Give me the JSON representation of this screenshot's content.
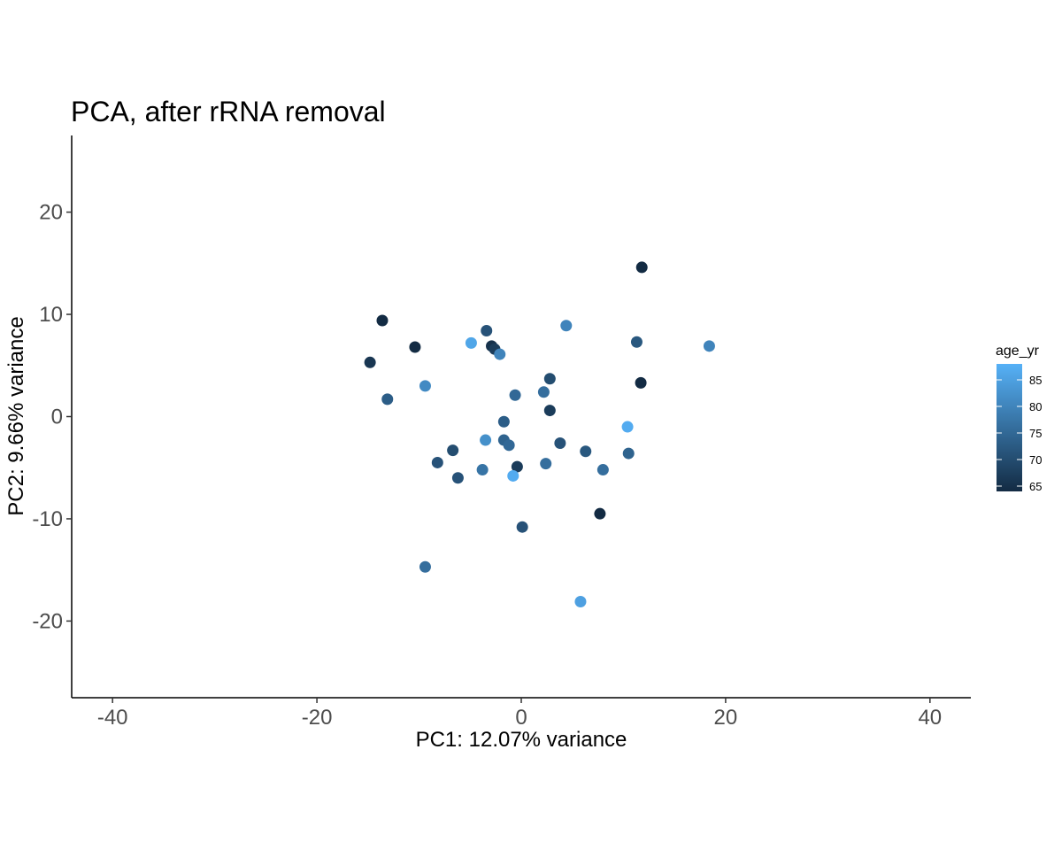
{
  "chart_data": {
    "type": "scatter",
    "title": "PCA, after rRNA removal",
    "xlabel": "PC1: 12.07% variance",
    "ylabel": "PC2: 9.66% variance",
    "xlim": [
      -44,
      44
    ],
    "ylim": [
      -27.5,
      27.5
    ],
    "xticks": [
      -40,
      -20,
      0,
      20,
      40
    ],
    "yticks": [
      -20,
      -10,
      0,
      10,
      20
    ],
    "grid": false,
    "legend": {
      "title": "age_yr",
      "position": "right",
      "type": "colorbar",
      "range": [
        64,
        88
      ],
      "ticks": [
        65,
        70,
        75,
        80,
        85
      ],
      "colors": {
        "low": "#132b43",
        "high": "#56b1f7"
      }
    },
    "points": [
      {
        "x": 11.8,
        "y": 14.6,
        "age_yr": 64
      },
      {
        "x": -13.6,
        "y": 9.4,
        "age_yr": 64
      },
      {
        "x": -3.4,
        "y": 8.4,
        "age_yr": 71
      },
      {
        "x": 4.4,
        "y": 8.9,
        "age_yr": 80
      },
      {
        "x": -10.4,
        "y": 6.8,
        "age_yr": 64
      },
      {
        "x": -4.9,
        "y": 7.2,
        "age_yr": 86
      },
      {
        "x": -2.9,
        "y": 6.9,
        "age_yr": 65
      },
      {
        "x": -2.6,
        "y": 6.6,
        "age_yr": 67
      },
      {
        "x": -2.1,
        "y": 6.1,
        "age_yr": 80
      },
      {
        "x": 11.3,
        "y": 7.3,
        "age_yr": 72
      },
      {
        "x": 18.4,
        "y": 6.9,
        "age_yr": 80
      },
      {
        "x": -14.8,
        "y": 5.3,
        "age_yr": 66
      },
      {
        "x": 11.7,
        "y": 3.3,
        "age_yr": 64
      },
      {
        "x": -9.4,
        "y": 3.0,
        "age_yr": 81
      },
      {
        "x": -13.1,
        "y": 1.7,
        "age_yr": 73
      },
      {
        "x": 2.8,
        "y": 3.7,
        "age_yr": 70
      },
      {
        "x": 2.2,
        "y": 2.4,
        "age_yr": 76
      },
      {
        "x": -0.6,
        "y": 2.1,
        "age_yr": 75
      },
      {
        "x": 2.8,
        "y": 0.6,
        "age_yr": 67
      },
      {
        "x": -1.7,
        "y": -0.5,
        "age_yr": 73
      },
      {
        "x": 10.4,
        "y": -1.0,
        "age_yr": 87
      },
      {
        "x": -3.5,
        "y": -2.3,
        "age_yr": 82
      },
      {
        "x": -1.7,
        "y": -2.3,
        "age_yr": 74
      },
      {
        "x": -1.2,
        "y": -2.8,
        "age_yr": 75
      },
      {
        "x": 3.8,
        "y": -2.6,
        "age_yr": 71
      },
      {
        "x": -6.7,
        "y": -3.3,
        "age_yr": 70
      },
      {
        "x": 6.3,
        "y": -3.4,
        "age_yr": 72
      },
      {
        "x": 10.5,
        "y": -3.6,
        "age_yr": 74
      },
      {
        "x": -8.2,
        "y": -4.5,
        "age_yr": 71
      },
      {
        "x": -0.4,
        "y": -4.9,
        "age_yr": 67
      },
      {
        "x": 2.4,
        "y": -4.6,
        "age_yr": 76
      },
      {
        "x": -3.8,
        "y": -5.2,
        "age_yr": 77
      },
      {
        "x": 8.0,
        "y": -5.2,
        "age_yr": 76
      },
      {
        "x": -6.2,
        "y": -6.0,
        "age_yr": 71
      },
      {
        "x": -0.8,
        "y": -5.8,
        "age_yr": 87
      },
      {
        "x": 7.7,
        "y": -9.5,
        "age_yr": 64
      },
      {
        "x": 0.1,
        "y": -10.8,
        "age_yr": 71
      },
      {
        "x": -9.4,
        "y": -14.7,
        "age_yr": 76
      },
      {
        "x": 5.8,
        "y": -18.1,
        "age_yr": 85
      }
    ]
  }
}
